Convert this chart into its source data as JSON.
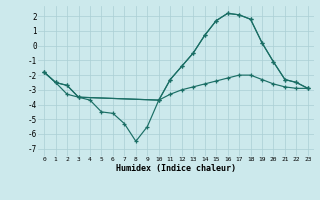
{
  "xlabel": "Humidex (Indice chaleur)",
  "background_color": "#cce9ec",
  "grid_color": "#aacfd4",
  "line_color": "#1a6e65",
  "xlim": [
    -0.5,
    23.5
  ],
  "ylim": [
    -7.5,
    2.7
  ],
  "yticks": [
    -7,
    -6,
    -5,
    -4,
    -3,
    -2,
    -1,
    0,
    1,
    2
  ],
  "xticks": [
    0,
    1,
    2,
    3,
    4,
    5,
    6,
    7,
    8,
    9,
    10,
    11,
    12,
    13,
    14,
    15,
    16,
    17,
    18,
    19,
    20,
    21,
    22,
    23
  ],
  "line1_x": [
    0,
    1,
    2,
    3,
    10,
    11,
    12,
    13,
    14,
    15,
    16,
    17,
    18,
    19,
    20,
    21,
    22,
    23
  ],
  "line1_y": [
    -1.8,
    -2.5,
    -2.7,
    -3.5,
    -3.7,
    -2.3,
    -1.4,
    -0.5,
    0.7,
    1.7,
    2.2,
    2.1,
    1.8,
    0.2,
    -1.1,
    -2.3,
    -2.5,
    -2.9
  ],
  "line2_x": [
    0,
    1,
    2,
    3,
    4,
    5,
    6,
    7,
    8,
    9,
    10,
    11,
    12,
    13,
    14,
    15,
    16,
    17,
    18,
    19,
    20,
    21,
    22,
    23
  ],
  "line2_y": [
    -1.8,
    -2.5,
    -2.7,
    -3.5,
    -3.7,
    -4.5,
    -4.6,
    -5.3,
    -6.5,
    -5.5,
    -3.7,
    -2.3,
    -1.4,
    -0.5,
    0.7,
    1.7,
    2.2,
    2.1,
    1.8,
    0.2,
    -1.1,
    -2.3,
    -2.5,
    -2.9
  ],
  "line3_x": [
    0,
    1,
    2,
    3,
    10,
    11,
    12,
    13,
    14,
    15,
    16,
    17,
    18,
    19,
    20,
    21,
    22,
    23
  ],
  "line3_y": [
    -1.8,
    -2.5,
    -3.3,
    -3.5,
    -3.7,
    -3.3,
    -3.0,
    -2.8,
    -2.6,
    -2.4,
    -2.2,
    -2.0,
    -2.0,
    -2.3,
    -2.6,
    -2.8,
    -2.9,
    -2.9
  ]
}
